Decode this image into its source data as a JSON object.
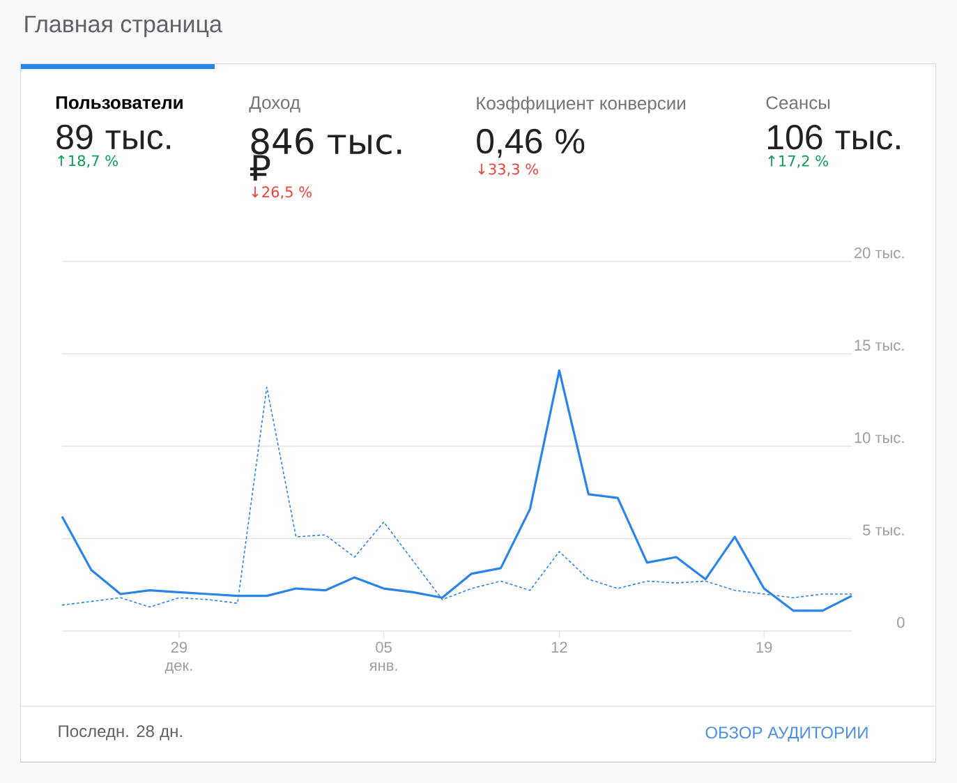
{
  "chart_data": [
    {
      "type": "other",
      "title": "Главная страница",
      "annotations": [
        "Пользователи",
        "89 тыс.",
        "↑18,7 %",
        "Доход",
        "846 тыс. ₽",
        "↓26,5 %",
        "Коэффициент конверсии",
        "0,46 %",
        "↓33,3 %",
        "Сеансы",
        "106 тыс.",
        "↑17,2 %"
      ]
    },
    {
      "type": "line",
      "categories": [
        null,
        null,
        null,
        null,
        "29 дек.",
        null,
        null,
        null,
        null,
        null,
        null,
        "05 янв.",
        null,
        null,
        null,
        null,
        null,
        "12",
        null,
        null,
        null,
        null,
        null,
        null,
        "19",
        null,
        null,
        null
      ],
      "series": [
        {
          "color": "#2a84ea",
          "line_style": "solid",
          "values": [
            6.2,
            3.3,
            2.0,
            2.2,
            2.1,
            2.0,
            1.9,
            1.9,
            2.3,
            2.2,
            2.9,
            2.3,
            2.1,
            1.8,
            3.1,
            3.4,
            6.6,
            14.1,
            7.4,
            7.2,
            3.7,
            4.0,
            2.8,
            5.1,
            2.3,
            1.1,
            1.1,
            1.9
          ]
        },
        {
          "color": "#2a84ea",
          "line_style": "dashed",
          "values": [
            1.4,
            1.6,
            1.8,
            1.3,
            1.8,
            1.7,
            1.5,
            13.2,
            5.1,
            5.2,
            4.0,
            5.9,
            3.8,
            1.7,
            2.3,
            2.7,
            2.2,
            4.3,
            2.8,
            2.3,
            2.7,
            2.6,
            2.7,
            2.2,
            2.0,
            1.8,
            2.0,
            2.0
          ]
        }
      ],
      "ylim": [
        0,
        20
      ],
      "yticks": [
        0,
        {
          "value": 5,
          "label": "5 тыс."
        },
        {
          "value": 10,
          "label": "10 тыс."
        },
        {
          "value": 15,
          "label": "15 тыс."
        },
        {
          "value": 20,
          "label": "20 тыс."
        }
      ],
      "grid": "y",
      "annotations": [
        "Последн. 28 дн.",
        "ОБЗОР АУДИТОРИИ"
      ]
    }
  ]
}
